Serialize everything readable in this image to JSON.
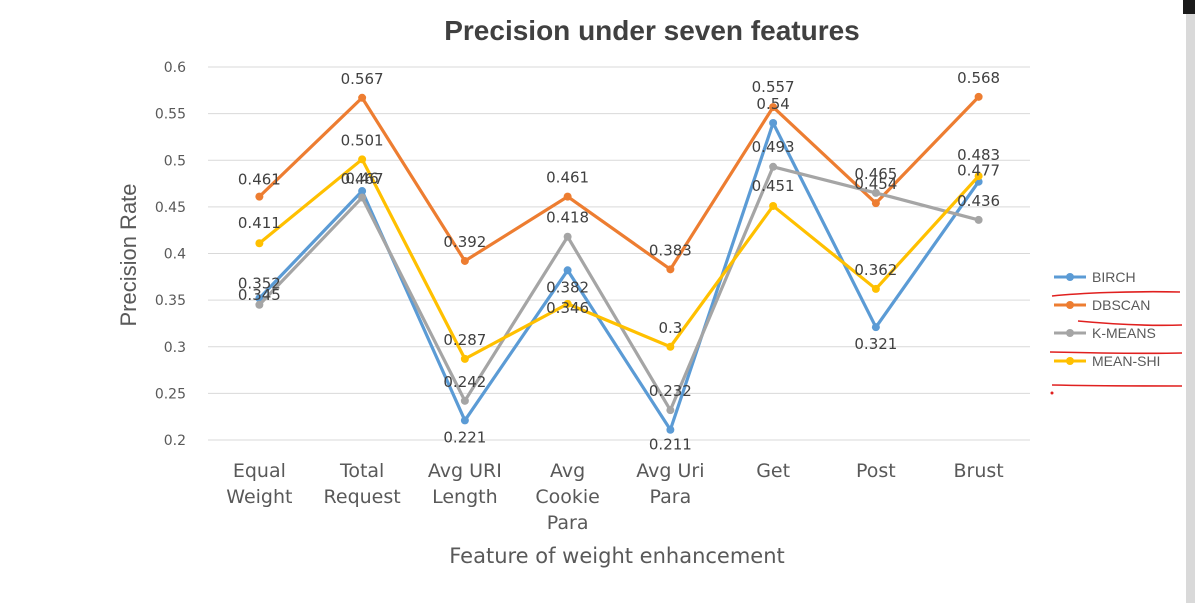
{
  "chart_data": {
    "type": "line",
    "title": "Precision under seven features",
    "xlabel": "Feature of weight enhancement",
    "ylabel": "Precision Rate",
    "ylim": [
      0.2,
      0.6
    ],
    "yticks": [
      "0.2",
      "0.25",
      "0.3",
      "0.35",
      "0.4",
      "0.45",
      "0.5",
      "0.55",
      "0.6"
    ],
    "categories": [
      [
        "Equal",
        "Weight"
      ],
      [
        "Total",
        "Request"
      ],
      [
        "Avg URI",
        "Length"
      ],
      [
        "Avg",
        "Cookie",
        "Para"
      ],
      [
        "Avg Uri",
        "Para"
      ],
      [
        "Get"
      ],
      [
        "Post"
      ],
      [
        "Brust"
      ]
    ],
    "grid": true,
    "legend_position": "right",
    "series": [
      {
        "name": "BIRCH",
        "color": "#5b9bd5",
        "values": [
          0.352,
          0.467,
          0.221,
          0.382,
          0.211,
          0.54,
          0.321,
          0.477
        ]
      },
      {
        "name": "DBSCAN",
        "color": "#ed7d31",
        "values": [
          0.461,
          0.567,
          0.392,
          0.461,
          0.383,
          0.557,
          0.454,
          0.568
        ]
      },
      {
        "name": "K-MEANS",
        "color": "#a5a5a5",
        "values": [
          0.345,
          0.46,
          0.242,
          0.418,
          0.232,
          0.493,
          0.465,
          0.436
        ]
      },
      {
        "name": "MEAN-SHI",
        "color": "#ffc000",
        "values": [
          0.411,
          0.501,
          0.287,
          0.346,
          0.3,
          0.451,
          0.362,
          0.483
        ]
      }
    ]
  }
}
